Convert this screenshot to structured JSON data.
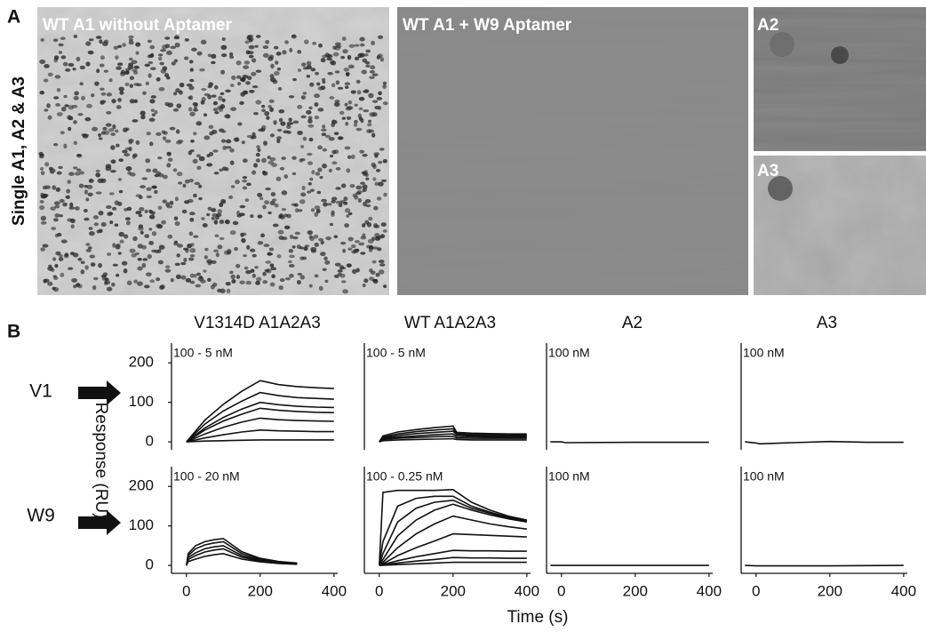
{
  "figure": {
    "panel_a": "A",
    "panel_b": "B",
    "row_label_a": "Single A1, A2 & A3",
    "image_labels": [
      "WT A1 without Aptamer",
      "WT A1 + W9 Aptamer",
      "A2",
      "A3"
    ],
    "row_labels": [
      "V1",
      "W9"
    ],
    "ylabel": "Response (RU)",
    "xlabel": "Time (s)"
  },
  "chart_data": [
    {
      "type": "line",
      "title": "V1314D A1A2A3",
      "annotation": "100 - 5 nM",
      "xlim": [
        -50,
        410
      ],
      "ylim": [
        -20,
        250
      ],
      "yticks": [
        0,
        100,
        200
      ],
      "x": [
        0,
        50,
        100,
        150,
        200,
        250,
        300,
        350,
        400
      ],
      "series": [
        {
          "color": "#111111",
          "values": [
            0,
            55,
            95,
            128,
            155,
            145,
            140,
            137,
            135
          ]
        },
        {
          "color": "#111111",
          "values": [
            0,
            45,
            78,
            103,
            125,
            117,
            112,
            110,
            108
          ]
        },
        {
          "color": "#111111",
          "values": [
            0,
            35,
            62,
            83,
            100,
            94,
            90,
            88,
            87
          ]
        },
        {
          "color": "#111111",
          "values": [
            0,
            30,
            53,
            70,
            85,
            80,
            77,
            75,
            74
          ]
        },
        {
          "color": "#111111",
          "values": [
            0,
            20,
            37,
            50,
            60,
            56,
            54,
            53,
            52
          ]
        },
        {
          "color": "#111111",
          "values": [
            0,
            10,
            18,
            25,
            30,
            28,
            27,
            26,
            26
          ]
        },
        {
          "color": "#111111",
          "values": [
            0,
            2,
            3,
            4,
            5,
            5,
            5,
            5,
            5
          ]
        }
      ]
    },
    {
      "type": "line",
      "title": "WT A1A2A3",
      "annotation": "100 - 5 nM",
      "xlim": [
        -50,
        410
      ],
      "ylim": [
        -20,
        250
      ],
      "x": [
        0,
        10,
        50,
        100,
        150,
        200,
        210,
        250,
        300,
        350,
        400
      ],
      "series": [
        {
          "color": "#111111",
          "values": [
            0,
            15,
            25,
            31,
            36,
            40,
            24,
            22,
            21,
            20,
            20
          ]
        },
        {
          "color": "#111111",
          "values": [
            0,
            12,
            20,
            26,
            30,
            33,
            21,
            19,
            18,
            18,
            17
          ]
        },
        {
          "color": "#111111",
          "values": [
            0,
            10,
            16,
            21,
            24,
            27,
            18,
            16,
            15,
            15,
            15
          ]
        },
        {
          "color": "#111111",
          "values": [
            0,
            8,
            12,
            15,
            18,
            20,
            14,
            13,
            12,
            12,
            12
          ]
        },
        {
          "color": "#111111",
          "values": [
            0,
            6,
            9,
            11,
            13,
            14,
            10,
            9,
            9,
            9,
            9
          ]
        },
        {
          "color": "#111111",
          "values": [
            0,
            3,
            5,
            6,
            7,
            8,
            6,
            5,
            5,
            5,
            5
          ]
        }
      ]
    },
    {
      "type": "line",
      "title": "A2",
      "annotation": "100 nM",
      "xlim": [
        -50,
        410
      ],
      "ylim": [
        -20,
        250
      ],
      "x": [
        -30,
        0,
        10,
        200,
        400
      ],
      "series": [
        {
          "color": "#111111",
          "values": [
            0,
            0,
            -2,
            -1,
            -1
          ]
        }
      ]
    },
    {
      "type": "line",
      "title": "A3",
      "annotation": "100 nM",
      "xlim": [
        -50,
        410
      ],
      "ylim": [
        -20,
        250
      ],
      "x": [
        -30,
        0,
        10,
        100,
        200,
        300,
        400
      ],
      "series": [
        {
          "color": "#111111",
          "values": [
            0,
            -3,
            -5,
            -2,
            1,
            -1,
            -1
          ]
        }
      ]
    },
    {
      "type": "line",
      "annotation": "100 - 20 nM",
      "xlim": [
        -50,
        410
      ],
      "ylim": [
        -20,
        250
      ],
      "yticks": [
        0,
        100,
        200
      ],
      "xticks": [
        0,
        200,
        400
      ],
      "x": [
        0,
        5,
        25,
        50,
        75,
        100,
        150,
        200,
        250,
        300
      ],
      "series": [
        {
          "color": "#111111",
          "values": [
            0,
            30,
            50,
            60,
            65,
            68,
            35,
            18,
            10,
            6
          ]
        },
        {
          "color": "#111111",
          "values": [
            0,
            25,
            42,
            52,
            57,
            60,
            30,
            15,
            8,
            5
          ]
        },
        {
          "color": "#111111",
          "values": [
            0,
            20,
            32,
            42,
            47,
            50,
            25,
            13,
            7,
            4
          ]
        },
        {
          "color": "#111111",
          "values": [
            0,
            15,
            25,
            34,
            39,
            42,
            21,
            11,
            6,
            4
          ]
        },
        {
          "color": "#111111",
          "values": [
            0,
            10,
            16,
            23,
            27,
            30,
            16,
            9,
            5,
            3
          ]
        }
      ]
    },
    {
      "type": "line",
      "annotation": "100 - 0.25 nM",
      "xlim": [
        -50,
        410
      ],
      "ylim": [
        -20,
        250
      ],
      "xticks": [
        0,
        200,
        400
      ],
      "x": [
        0,
        10,
        50,
        100,
        150,
        200,
        250,
        300,
        350,
        400
      ],
      "series": [
        {
          "color": "#111111",
          "values": [
            0,
            185,
            190,
            190,
            190,
            192,
            160,
            140,
            125,
            115
          ]
        },
        {
          "color": "#111111",
          "values": [
            0,
            60,
            150,
            170,
            175,
            175,
            150,
            135,
            122,
            113
          ]
        },
        {
          "color": "#111111",
          "values": [
            0,
            30,
            110,
            145,
            160,
            165,
            145,
            132,
            120,
            112
          ]
        },
        {
          "color": "#111111",
          "values": [
            0,
            15,
            75,
            115,
            140,
            155,
            140,
            128,
            118,
            110
          ]
        },
        {
          "color": "#111111",
          "values": [
            0,
            8,
            45,
            80,
            105,
            125,
            115,
            105,
            98,
            92
          ]
        },
        {
          "color": "#111111",
          "values": [
            0,
            4,
            25,
            45,
            62,
            80,
            78,
            76,
            74,
            72
          ]
        },
        {
          "color": "#111111",
          "values": [
            0,
            2,
            12,
            22,
            30,
            38,
            37,
            37,
            36,
            36
          ]
        },
        {
          "color": "#111111",
          "values": [
            0,
            1,
            6,
            11,
            15,
            20,
            19,
            19,
            18,
            18
          ]
        },
        {
          "color": "#111111",
          "values": [
            0,
            0.5,
            2,
            4,
            6,
            8,
            8,
            8,
            8,
            8
          ]
        }
      ]
    },
    {
      "type": "line",
      "annotation": "100 nM",
      "xlim": [
        -50,
        410
      ],
      "ylim": [
        -20,
        250
      ],
      "xticks": [
        0,
        200,
        400
      ],
      "x": [
        -30,
        0,
        200,
        400
      ],
      "series": [
        {
          "color": "#111111",
          "values": [
            0,
            0,
            0,
            0
          ]
        }
      ]
    },
    {
      "type": "line",
      "annotation": "100 nM",
      "xlim": [
        -50,
        410
      ],
      "ylim": [
        -20,
        250
      ],
      "xticks": [
        0,
        200,
        400
      ],
      "x": [
        -30,
        0,
        200,
        400
      ],
      "series": [
        {
          "color": "#111111",
          "values": [
            0,
            -1,
            -1,
            0
          ]
        }
      ]
    }
  ]
}
